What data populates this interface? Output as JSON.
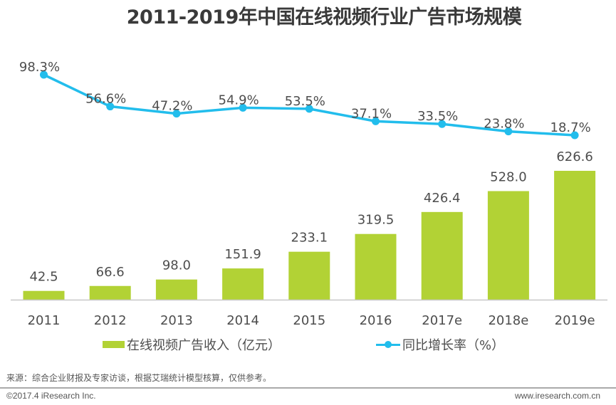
{
  "chart_data": {
    "type": "bar+line",
    "title": "2011-2019年中国在线视频行业广告市场规模",
    "categories": [
      "2011",
      "2012",
      "2013",
      "2014",
      "2015",
      "2016",
      "2017e",
      "2018e",
      "2019e"
    ],
    "series": [
      {
        "name": "在线视频广告收入（亿元）",
        "type": "bar",
        "axis": "left",
        "color": "#b2d235",
        "values": [
          42.5,
          66.6,
          98.0,
          151.9,
          233.1,
          319.5,
          426.4,
          528.0,
          626.6
        ],
        "labels": [
          "42.5",
          "66.6",
          "98.0",
          "151.9",
          "233.1",
          "319.5",
          "426.4",
          "528.0",
          "626.6"
        ]
      },
      {
        "name": "同比增长率（%）",
        "type": "line",
        "axis": "right",
        "color": "#22bdec",
        "values": [
          98.3,
          56.6,
          47.2,
          54.9,
          53.5,
          37.1,
          33.5,
          23.8,
          18.7
        ],
        "labels": [
          "98.3%",
          "56.6%",
          "47.2%",
          "54.9%",
          "53.5%",
          "37.1%",
          "33.5%",
          "23.8%",
          "18.7%"
        ]
      }
    ],
    "xlabel": "",
    "ylabel": "",
    "bar_ylim": [
      0,
      720
    ],
    "line_ylim": [
      0,
      197
    ],
    "grid": false,
    "legend": "bottom",
    "axis_visible": false
  },
  "legend": {
    "bar_label": "在线视频广告收入（亿元）",
    "line_label": "同比增长率（%）"
  },
  "footer": {
    "source": "来源：综合企业财报及专家访谈，根据艾瑞统计模型核算，仅供参考。",
    "copyright": "©2017.4 iResearch Inc.",
    "website": "www.iresearch.com.cn"
  }
}
